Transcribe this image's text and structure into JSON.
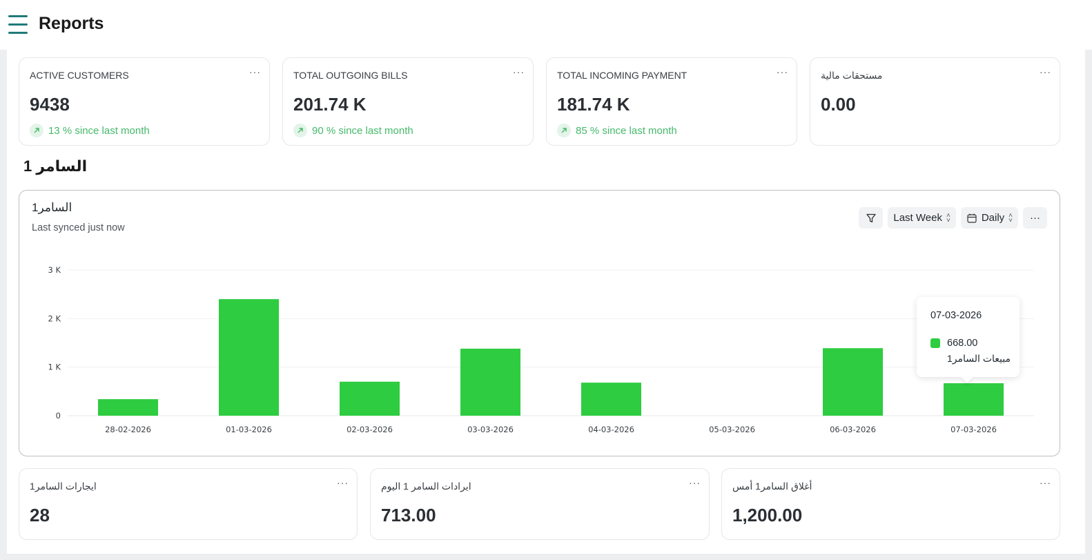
{
  "header": {
    "title": "Reports",
    "menu_icon": "hamburger-icon"
  },
  "kpis": [
    {
      "label": "ACTIVE CUSTOMERS",
      "value": "9438",
      "trend": "13 % since last month"
    },
    {
      "label": "TOTAL OUTGOING BILLS",
      "value": "201.74 K",
      "trend": "90 % since last month"
    },
    {
      "label": "TOTAL INCOMING PAYMENT",
      "value": "181.74 K",
      "trend": "85 % since last month"
    },
    {
      "label": "مستحقات مالية",
      "value": "0.00"
    }
  ],
  "card_menu": "···",
  "section": {
    "title": "السامر 1"
  },
  "chart_card": {
    "title": "السامر1",
    "subtitle": "Last synced just now",
    "filter_icon": "filter-icon",
    "range": "Last Week",
    "calendar_icon": "calendar-icon",
    "interval": "Daily",
    "menu": "···"
  },
  "chart_data": {
    "type": "bar",
    "categories": [
      "28-02-2026",
      "01-03-2026",
      "02-03-2026",
      "03-03-2026",
      "04-03-2026",
      "05-03-2026",
      "06-03-2026",
      "07-03-2026"
    ],
    "series": [
      {
        "name": "مبيعات السامر1",
        "values": [
          340,
          2400,
          700,
          1380,
          680,
          0,
          1390,
          668
        ]
      }
    ],
    "y_ticks": [
      "0",
      "1 K",
      "2 K",
      "3 K"
    ],
    "ylim": [
      0,
      3000
    ],
    "grid": true,
    "bar_color": "#2ecc40"
  },
  "tooltip": {
    "date": "07-03-2026",
    "value": "668.00",
    "series_name": "مبيعات السامر1"
  },
  "bottom_cards": [
    {
      "label": "ايجارات السامر1",
      "value": "28"
    },
    {
      "label": "ايرادات السامر 1 اليوم",
      "value": "713.00"
    },
    {
      "label": "أغلاق السامر1 أمس",
      "value": "1,200.00"
    }
  ],
  "colors": {
    "accent": "#1f7a78",
    "positive": "#44b96a",
    "bar": "#2ecc40"
  }
}
